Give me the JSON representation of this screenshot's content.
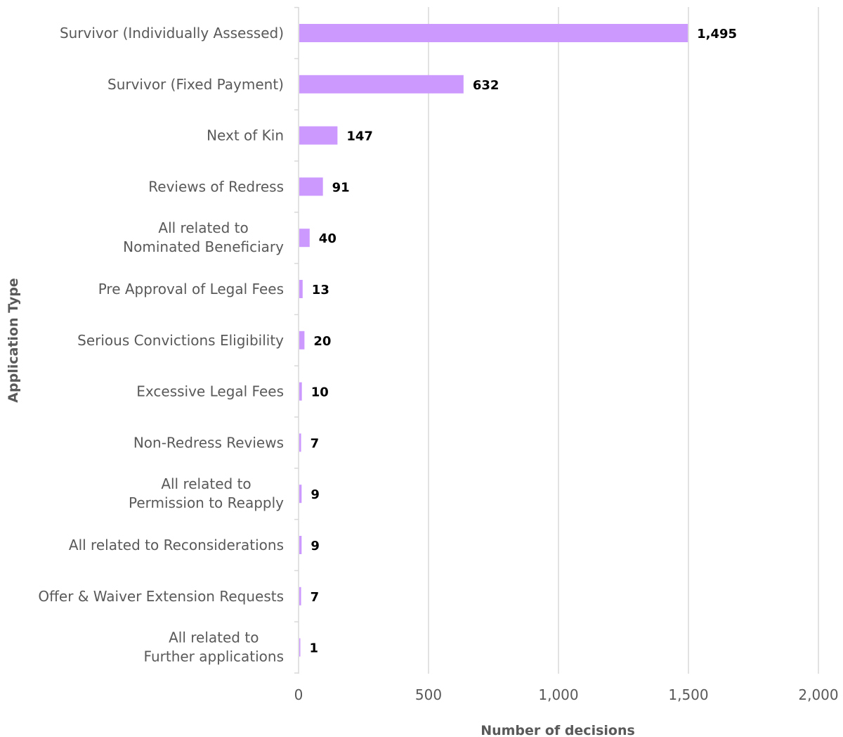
{
  "chart_data": {
    "type": "bar",
    "orientation": "horizontal",
    "categories": [
      "Survivor (Individually Assessed)",
      "Survivor (Fixed Payment)",
      "Next of Kin",
      "Reviews of Redress",
      "All related to\nNominated Beneficiary",
      "Pre Approval of Legal Fees",
      "Serious Convictions Eligibility",
      "Excessive Legal Fees",
      "Non-Redress Reviews",
      "All related to\nPermission to Reapply",
      "All related to Reconsiderations",
      "Offer & Waiver Extension Requests",
      "All related to\nFurther applications"
    ],
    "values": [
      1495,
      632,
      147,
      91,
      40,
      13,
      20,
      10,
      7,
      9,
      9,
      7,
      1
    ],
    "value_labels": [
      "1,495",
      "632",
      "147",
      "91",
      "40",
      "13",
      "20",
      "10",
      "7",
      "9",
      "9",
      "7",
      "1"
    ],
    "xlabel": "Number of decisions",
    "ylabel": "Application Type",
    "xlim": [
      0,
      2000
    ],
    "xticks": [
      0,
      500,
      1000,
      1500,
      2000
    ],
    "xtick_labels": [
      "0",
      "500",
      "1,000",
      "1,500",
      "2,000"
    ],
    "grid": "vertical",
    "legend": "none",
    "bar_color": "#cc99ff"
  }
}
